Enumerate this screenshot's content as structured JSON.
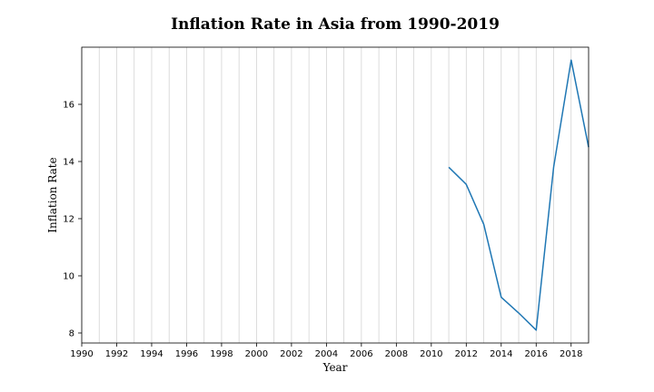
{
  "chart_data": {
    "type": "line",
    "title": "Inflation Rate in Asia from 1990-2019",
    "xlabel": "Year",
    "ylabel": "Inflation Rate",
    "xlim": [
      1990,
      2019
    ],
    "ylim": [
      7.65,
      18.0
    ],
    "x_ticks": [
      1990,
      1992,
      1994,
      1996,
      1998,
      2000,
      2002,
      2004,
      2006,
      2008,
      2010,
      2012,
      2014,
      2016,
      2018
    ],
    "y_ticks": [
      8,
      10,
      12,
      14,
      16
    ],
    "grid": "vertical, every year",
    "series": [
      {
        "color": "#1f77b4",
        "x": [
          2011,
          2012,
          2013,
          2014,
          2015,
          2016,
          2017,
          2018,
          2019
        ],
        "values": [
          13.8,
          13.2,
          11.8,
          9.25,
          8.7,
          8.1,
          13.8,
          17.55,
          14.5
        ]
      }
    ]
  }
}
